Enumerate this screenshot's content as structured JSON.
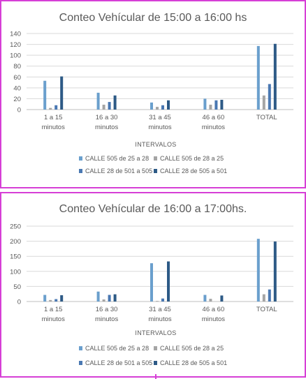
{
  "chart_data": [
    {
      "type": "bar",
      "title": "Conteo Vehícular  de 15:00 a 16:00 hs",
      "xlabel": "INTERVALOS",
      "categories": [
        [
          "1 a 15",
          "minutos"
        ],
        [
          "16 a 30",
          "minutos"
        ],
        [
          "31 a 45",
          "minutos"
        ],
        [
          "46 a 60",
          "minutos"
        ],
        [
          "TOTAL"
        ]
      ],
      "ylim": [
        0,
        140
      ],
      "yticks": [
        0,
        20,
        40,
        60,
        80,
        100,
        120,
        140
      ],
      "grid": true,
      "legend_position": "bottom",
      "series": [
        {
          "name": "CALLE 505 de 25 a 28",
          "color": "#6a9fcd",
          "values": [
            53,
            31,
            13,
            20,
            117
          ]
        },
        {
          "name": "CALLE 505 de 28 a 25",
          "color": "#a5a5a5",
          "values": [
            3,
            9,
            5,
            9,
            26
          ]
        },
        {
          "name": "CALLE 28 de 501 a 505",
          "color": "#4a78b2",
          "values": [
            8,
            14,
            8,
            17,
            47
          ]
        },
        {
          "name": "CALLE 28 de 505 a 501",
          "color": "#2d5a86",
          "values": [
            61,
            26,
            17,
            18,
            121
          ]
        }
      ]
    },
    {
      "type": "bar",
      "title": "Conteo Vehícular  de 16:00 a 17:00hs.",
      "xlabel": "INTERVALOS",
      "categories": [
        [
          "1 a 15",
          "minutos"
        ],
        [
          "16 a 30",
          "minutos"
        ],
        [
          "31 a 45",
          "minutos"
        ],
        [
          "46 a 60",
          "minutos"
        ],
        [
          "TOTAL"
        ]
      ],
      "ylim": [
        0,
        250
      ],
      "yticks": [
        0,
        50,
        100,
        150,
        200,
        250
      ],
      "grid": true,
      "legend_position": "bottom",
      "series": [
        {
          "name": "CALLE 505 de 25 a 28",
          "color": "#6a9fcd",
          "values": [
            22,
            33,
            127,
            22,
            208
          ]
        },
        {
          "name": "CALLE 505 de 28 a 25",
          "color": "#a5a5a5",
          "values": [
            5,
            7,
            2,
            9,
            24
          ]
        },
        {
          "name": "CALLE 28 de 501 a 505",
          "color": "#4a78b2",
          "values": [
            8,
            22,
            10,
            0,
            40
          ]
        },
        {
          "name": "CALLE 28 de 505 a 501",
          "color": "#2d5a86",
          "values": [
            21,
            24,
            133,
            20,
            199
          ]
        }
      ]
    }
  ]
}
